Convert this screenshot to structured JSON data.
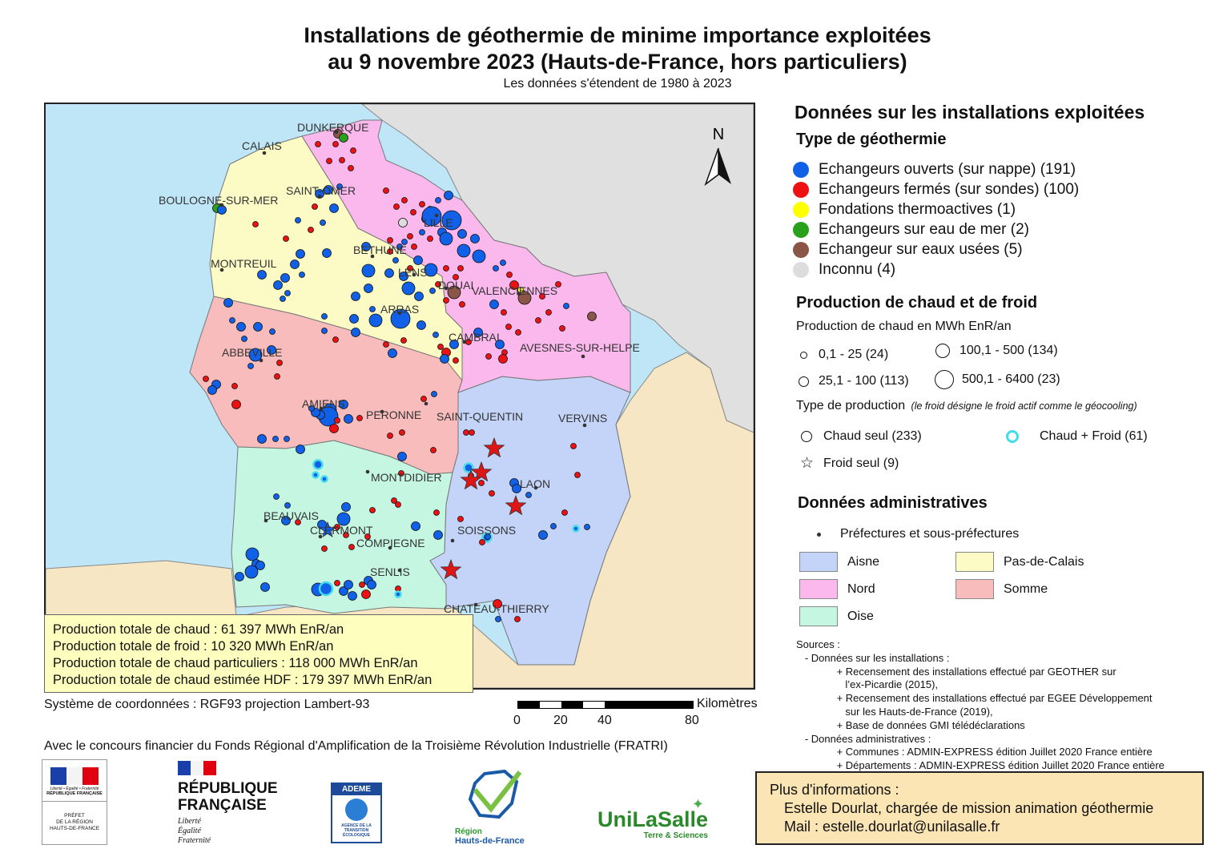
{
  "title_line1": "Installations de géothermie de minime importance exploitées",
  "title_line2": "au 9 novembre 2023 (Hauts-de-France, hors particuliers)",
  "subtitle": "Les données s'étendent de 1980 à 2023",
  "north_label": "N",
  "cities": {
    "dunkerque": "DUNKERQUE",
    "calais": "CALAIS",
    "boulogne": "BOULOGNE-SUR-MER",
    "saint_omer": "SAINT-OMER",
    "lille": "LILLE",
    "bethune": "BETHUNE",
    "lens": "LENS",
    "montreuil": "MONTREUIL",
    "douai": "DOUAI",
    "valenciennes": "VALENCIENNES",
    "arras": "ARRAS",
    "cambrai": "CAMBRAI",
    "avesnes": "AVESNES-SUR-HELPE",
    "abbeville": "ABBEVILLE",
    "amiens": "AMIENS",
    "peronne": "PERONNE",
    "saint_quentin": "SAINT-QUENTIN",
    "vervins": "VERVINS",
    "montdidier": "MONTDIDIER",
    "laon": "LAON",
    "beauvais": "BEAUVAIS",
    "clermont": "CLERMONT",
    "compiegne": "COMPIEGNE",
    "soissons": "SOISSONS",
    "senlis": "SENLIS",
    "chateau_thierry": "CHATEAU-THIERRY"
  },
  "stats": {
    "line1": "Production totale de chaud : 61 397 MWh EnR/an",
    "line2": "Production totale de froid : 10 320 MWh EnR/an",
    "line3": "Production totale de chaud particuliers : 118 000 MWh EnR/an",
    "line4": "Production totale de chaud estimée HDF : 179 397 MWh EnR/an"
  },
  "coord_system": "Système de coordonnées : RGF93 projection Lambert-93",
  "scale": {
    "unit": "Kilomètres",
    "t0": "0",
    "t1": "20",
    "t2": "40",
    "t3": "80"
  },
  "funding": "Avec le concours financier du Fonds Régional d'Amplification de la Troisième Révolution Industrielle (FRATRI)",
  "legend": {
    "heading": "Données sur les installations exploitées",
    "type_heading": "Type de géothermie",
    "types": [
      {
        "label": "Echangeurs ouverts (sur nappe) (191)",
        "color": "#1160e8"
      },
      {
        "label": "Echangeurs fermés (sur sondes) (100)",
        "color": "#ee1111"
      },
      {
        "label": "Fondations thermoactives (1)",
        "color": "#ffff00"
      },
      {
        "label": "Echangeurs sur eau de mer (2)",
        "color": "#2aa01c"
      },
      {
        "label": "Echangeur sur eaux usées (5)",
        "color": "#8b5548"
      },
      {
        "label": "Inconnu (4)",
        "color": "#dddddd"
      }
    ],
    "prod_heading": "Production de chaud et de froid",
    "heat_caption": "Production de chaud en MWh EnR/an",
    "sizes": [
      "0,1 - 25 (24)",
      "100,1 - 500 (134)",
      "25,1 - 100 (113)",
      "500,1 - 6400 (23)"
    ],
    "ptype_caption": "Type de production",
    "ptype_note": "(le froid désigne le froid actif comme le géocooling)",
    "ptype": [
      "Chaud seul (233)",
      "Chaud + Froid (61)",
      "Froid seul (9)"
    ],
    "admin_heading": "Données administratives",
    "prefectures": "Préfectures et sous-préfectures",
    "departments": [
      {
        "label": "Aisne",
        "color": "#c4d4f8"
      },
      {
        "label": "Pas-de-Calais",
        "color": "#fcfbc6"
      },
      {
        "label": "Nord",
        "color": "#fab8ec"
      },
      {
        "label": "Somme",
        "color": "#f8bcbc"
      },
      {
        "label": "Oise",
        "color": "#c4f6e2"
      }
    ]
  },
  "sources": "Sources :\n   - Données sur les installations :\n              + Recensement des installations effectué par GEOTHER sur\n                 l’ex-Picardie (2015),\n              + Recensement des installations effectué par EGEE Développement\n                 sur les Hauts-de-France (2019),\n              + Base de données GMI télédéclarations\n   - Données administratives :\n              + Communes : ADMIN-EXPRESS édition Juillet 2020 France entière\n              + Départements : ADMIN-EXPRESS édition Juillet 2020 France entière",
  "info": {
    "line1": "Plus d'informations :",
    "line2": "Estelle Dourlat, chargée de mission animation géothermie",
    "line3": "Mail : estelle.dourlat@unilasalle.fr"
  },
  "logos": {
    "prefet_motto": "Liberté • Égalité • Fraternité",
    "prefet_rf": "RÉPUBLIQUE FRANÇAISE",
    "prefet_caption": "PRÉFET\nDE LA RÉGION\nHAUTS-DE-FRANCE",
    "rf_line1": "RÉPUBLIQUE",
    "rf_line2": "FRANÇAISE",
    "rf_motto": "Liberté\nÉgalité\nFraternité",
    "ademe": "ADEME",
    "ademe_caption": "AGENCE DE LA\nTRANSITION\nÉCOLOGIQUE",
    "region_line1": "Région",
    "region_line2": "Hauts-de-France",
    "unilasalle": "UniLaSalle",
    "unilasalle_sub": "Terre & Sciences"
  }
}
